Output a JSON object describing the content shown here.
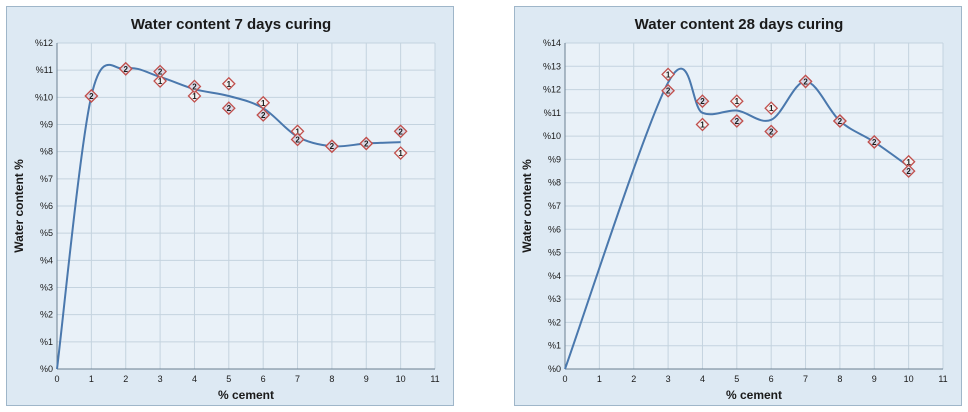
{
  "colors": {
    "panel_background": "#dde9f3",
    "plot_background": "#e9f1f8",
    "grid": "#c4d3df",
    "axis": "#6a7f90",
    "trend_line": "#4a78ad",
    "marker_1_fill": "#f2f2f2",
    "marker_1_stroke": "#c0504d",
    "marker_2_fill": "#d9d9e6",
    "marker_2_stroke": "#c0504d"
  },
  "chart_data": [
    {
      "type": "scatter",
      "title": "Water content 7 days curing",
      "xlabel": "%  cement",
      "ylabel": "Water content %",
      "xlim": [
        0,
        11
      ],
      "ylim": [
        0,
        12
      ],
      "x_ticks": [
        "0",
        "1",
        "2",
        "3",
        "4",
        "5",
        "6",
        "7",
        "8",
        "9",
        "10",
        "11"
      ],
      "y_ticks": [
        "%0",
        "%1",
        "%2",
        "%3",
        "%4",
        "%5",
        "%6",
        "%7",
        "%8",
        "%9",
        "%10",
        "%11",
        "%12"
      ],
      "grid": true,
      "series": [
        {
          "name": "1",
          "marker": "diamond",
          "points": [
            [
              0,
              0
            ],
            [
              1,
              10.05
            ],
            [
              2,
              11.05
            ],
            [
              3,
              10.6
            ],
            [
              4,
              10.05
            ],
            [
              5,
              10.5
            ],
            [
              6,
              9.8
            ],
            [
              7,
              8.75
            ],
            [
              8,
              8.2
            ],
            [
              9,
              8.3
            ],
            [
              10,
              7.95
            ]
          ]
        },
        {
          "name": "2",
          "marker": "diamond",
          "points": [
            [
              0,
              0
            ],
            [
              1,
              10.05
            ],
            [
              2,
              11.05
            ],
            [
              3,
              10.95
            ],
            [
              4,
              10.4
            ],
            [
              5,
              9.6
            ],
            [
              6,
              9.35
            ],
            [
              7,
              8.45
            ],
            [
              8,
              8.2
            ],
            [
              9,
              8.3
            ],
            [
              10,
              8.75
            ]
          ]
        }
      ],
      "trend_line": [
        [
          0,
          0
        ],
        [
          1,
          10.05
        ],
        [
          2,
          11.05
        ],
        [
          3,
          10.75
        ],
        [
          4,
          10.3
        ],
        [
          5,
          10.05
        ],
        [
          6,
          9.6
        ],
        [
          7,
          8.55
        ],
        [
          8,
          8.2
        ],
        [
          9,
          8.3
        ],
        [
          10,
          8.35
        ]
      ]
    },
    {
      "type": "scatter",
      "title": "Water content 28 days curing",
      "xlabel": "%  cement",
      "ylabel": "Water content %",
      "xlim": [
        0,
        11
      ],
      "ylim": [
        0,
        14
      ],
      "x_ticks": [
        "0",
        "1",
        "2",
        "3",
        "4",
        "5",
        "6",
        "7",
        "8",
        "9",
        "10",
        "11"
      ],
      "y_ticks": [
        "%0",
        "%1",
        "%2",
        "%3",
        "%4",
        "%5",
        "%6",
        "%7",
        "%8",
        "%9",
        "%10",
        "%11",
        "%12",
        "%13",
        "%14"
      ],
      "grid": true,
      "series": [
        {
          "name": "1",
          "marker": "diamond",
          "points": [
            [
              0,
              0
            ],
            [
              3,
              12.65
            ],
            [
              4,
              10.5
            ],
            [
              5,
              11.5
            ],
            [
              6,
              11.2
            ],
            [
              7,
              12.35
            ],
            [
              8,
              10.65
            ],
            [
              9,
              9.75
            ],
            [
              10,
              8.9
            ]
          ]
        },
        {
          "name": "2",
          "marker": "diamond",
          "points": [
            [
              0,
              0
            ],
            [
              3,
              11.95
            ],
            [
              4,
              11.5
            ],
            [
              5,
              10.65
            ],
            [
              6,
              10.2
            ],
            [
              7,
              12.35
            ],
            [
              8,
              10.65
            ],
            [
              9,
              9.75
            ],
            [
              10,
              8.5
            ]
          ]
        }
      ],
      "trend_line": [
        [
          0,
          0
        ],
        [
          3,
          12.3
        ],
        [
          4,
          11.0
        ],
        [
          5,
          11.1
        ],
        [
          6,
          10.7
        ],
        [
          7,
          12.35
        ],
        [
          8,
          10.65
        ],
        [
          9,
          9.75
        ],
        [
          10,
          8.7
        ]
      ]
    }
  ]
}
